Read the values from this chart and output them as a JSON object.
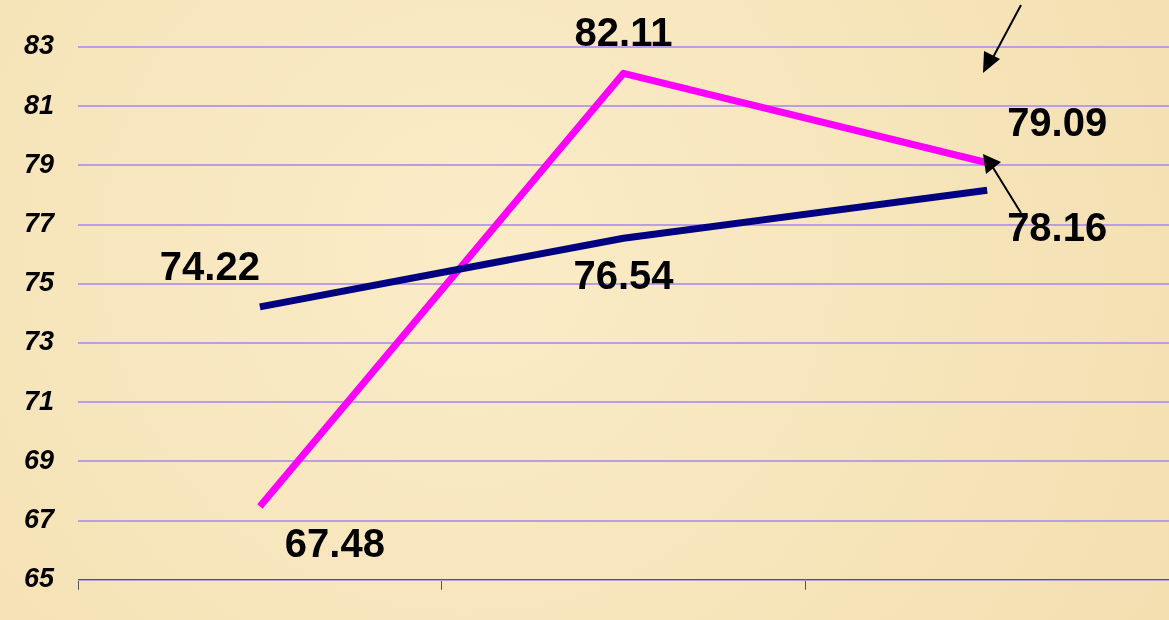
{
  "chart_data": {
    "type": "line",
    "categories": [
      null,
      null,
      null
    ],
    "series": [
      {
        "color": "#000080",
        "values": [
          74.22,
          76.54,
          78.16
        ]
      },
      {
        "color": "#ff00ff",
        "values": [
          67.48,
          82.11,
          79.09
        ]
      }
    ],
    "ylim": [
      65,
      83
    ],
    "yticks": [
      65,
      67,
      69,
      71,
      73,
      75,
      77,
      79,
      81,
      83
    ],
    "grid": "y",
    "legend": false,
    "marker": "none",
    "line_style": "solid",
    "data_labels": true
  }
}
